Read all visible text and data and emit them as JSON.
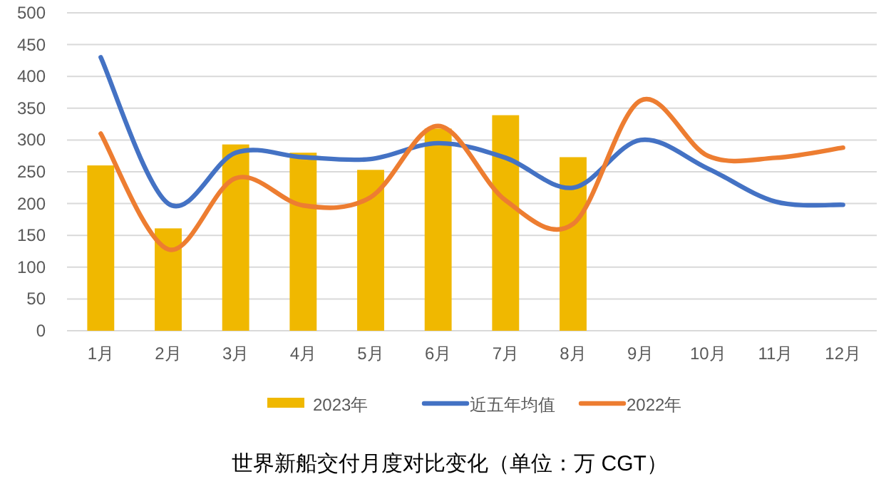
{
  "chart_data": {
    "type": "bar",
    "title": "世界新船交付月度对比变化（单位：万 CGT）",
    "categories": [
      "1月",
      "2月",
      "3月",
      "4月",
      "5月",
      "6月",
      "7月",
      "8月",
      "9月",
      "10月",
      "11月",
      "12月"
    ],
    "series": [
      {
        "name": "2023年",
        "color": "#f0b800",
        "values": [
          260,
          161,
          293,
          280,
          253,
          318,
          339,
          273,
          null,
          null,
          null,
          null
        ]
      },
      {
        "name": "近五年均值",
        "type": "line",
        "color": "#4472c4",
        "values": [
          430,
          200,
          280,
          273,
          270,
          295,
          272,
          225,
          300,
          255,
          203,
          198
        ]
      },
      {
        "name": "2022年",
        "type": "line",
        "color": "#ed7d31",
        "values": [
          310,
          128,
          240,
          197,
          210,
          322,
          205,
          168,
          362,
          275,
          272,
          288
        ]
      }
    ],
    "ylim": [
      0,
      500
    ],
    "yticks": [
      0,
      50,
      100,
      150,
      200,
      250,
      300,
      350,
      400,
      450,
      500
    ],
    "grid": "y",
    "legend": "bottom"
  }
}
